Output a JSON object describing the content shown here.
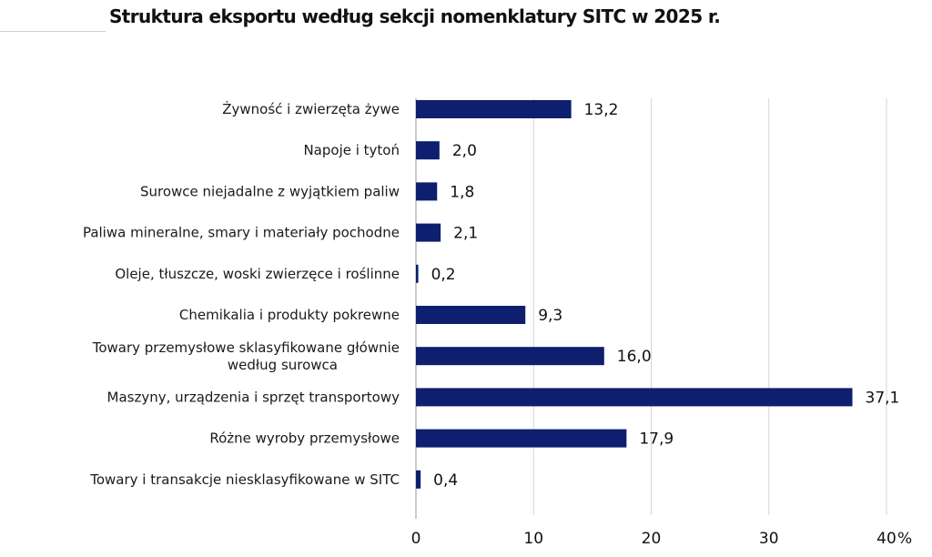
{
  "title": "Struktura eksportu według sekcji nomenklatury SITC w 2025 r.",
  "chart_data": {
    "type": "bar",
    "orientation": "horizontal",
    "categories": [
      "Żywność i zwierzęta żywe",
      "Napoje i tytoń",
      "Surowce niejadalne z wyjątkiem paliw",
      "Paliwa mineralne, smary i materiały  pochodne",
      "Oleje, tłuszcze, woski zwierzęce i roślinne",
      "Chemikalia i produkty pokrewne",
      "Towary przemysłowe sklasyfikowane głównie według surowca",
      "Maszyny, urządzenia i sprzęt transportowy",
      "Różne wyroby przemysłowe",
      "Towary i transakcje niesklasyfikowane w SITC"
    ],
    "values": [
      13.2,
      2.0,
      1.8,
      2.1,
      0.2,
      9.3,
      16.0,
      37.1,
      17.9,
      0.4
    ],
    "value_labels": [
      "13,2",
      "2,0",
      "1,8",
      "2,1",
      "0,2",
      "9,3",
      "16,0",
      "37,1",
      "17,9",
      "0,4"
    ],
    "xlim": [
      0,
      40
    ],
    "xticks": [
      "0",
      "10",
      "20",
      "30",
      "40"
    ],
    "x_unit": "%",
    "bar_color": "#0d1f6e",
    "grid": true
  }
}
